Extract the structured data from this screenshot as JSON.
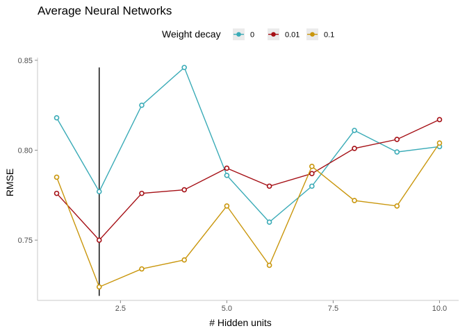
{
  "chart_data": {
    "type": "line",
    "title": "Average Neural Networks",
    "xlabel": "# Hidden units",
    "ylabel": "RMSE",
    "xlim": [
      0.55,
      10.45
    ],
    "ylim": [
      0.7165,
      0.8515
    ],
    "x_ticks": [
      2.5,
      5.0,
      7.5,
      10.0
    ],
    "x_tick_labels": [
      "2.5",
      "5.0",
      "7.5",
      "10.0"
    ],
    "y_ticks": [
      0.75,
      0.8,
      0.85
    ],
    "y_tick_labels": [
      "0.75",
      "0.80",
      "0.85"
    ],
    "grid": false,
    "legend": {
      "title": "Weight decay",
      "position": "top"
    },
    "x": [
      1,
      2,
      3,
      4,
      5,
      6,
      7,
      8,
      9,
      10
    ],
    "series": [
      {
        "name": "0",
        "color": "#3aabb7",
        "values": [
          0.818,
          0.777,
          0.825,
          0.846,
          0.786,
          0.76,
          0.78,
          0.811,
          0.799,
          0.802
        ]
      },
      {
        "name": "0.01",
        "color": "#a50f15",
        "values": [
          0.776,
          0.75,
          0.776,
          0.778,
          0.79,
          0.78,
          0.787,
          0.801,
          0.806,
          0.817
        ]
      },
      {
        "name": "0.1",
        "color": "#c9960c",
        "values": [
          0.785,
          0.724,
          0.734,
          0.739,
          0.769,
          0.736,
          0.791,
          0.772,
          0.769,
          0.804
        ]
      }
    ],
    "annotations": [
      {
        "type": "vline",
        "x": 2,
        "y_from": 0.719,
        "y_to": 0.846,
        "color": "#000000"
      }
    ]
  }
}
